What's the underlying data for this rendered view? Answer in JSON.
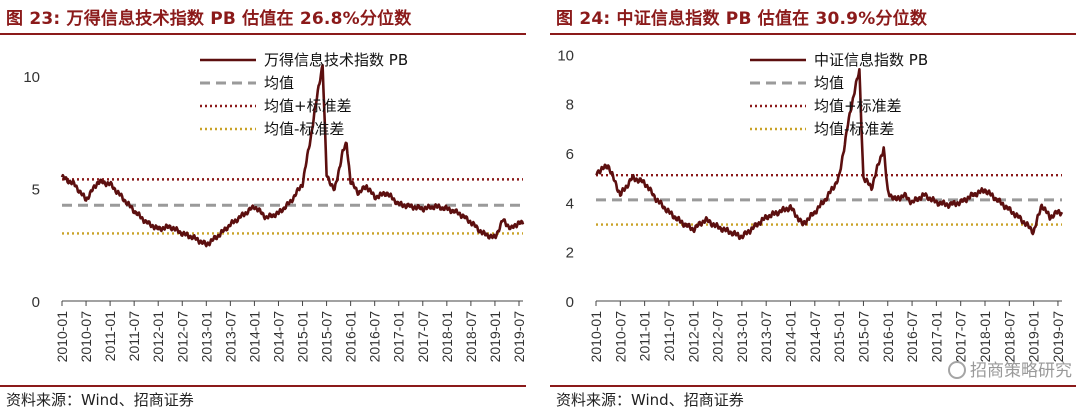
{
  "figures": [
    {
      "title": "图 23:  万得信息技术指数 PB 估值在 26.8%分位数",
      "source": "资料来源：Wind、招商证券"
    },
    {
      "title": "图 24:  中证信息指数 PB 估值在 30.9%分位数",
      "source": "资料来源：Wind、招商证券",
      "watermark": "招商策略研究"
    }
  ],
  "colors": {
    "title": "#8b1a1a",
    "series": "#5c0f0f",
    "mean": "#9a9a9a",
    "upper": "#8b1a1a",
    "lower": "#c9a227",
    "axis": "#333333"
  },
  "chart_data": [
    {
      "type": "line",
      "x_ticks": [
        "2010-01",
        "2010-07",
        "2011-01",
        "2011-07",
        "2012-01",
        "2012-07",
        "2013-01",
        "2013-07",
        "2014-01",
        "2014-07",
        "2015-01",
        "2015-07",
        "2016-01",
        "2016-07",
        "2017-01",
        "2017-07",
        "2018-01",
        "2018-07",
        "2019-01",
        "2019-07"
      ],
      "y_ticks": [
        0,
        5,
        10
      ],
      "ylim": [
        0,
        11.5
      ],
      "legend_position": "top-center",
      "series": [
        {
          "name": "万得信息技术指数 PB",
          "style": "solid",
          "color": "#5c0f0f",
          "x": [
            "2010-01",
            "2010-04",
            "2010-07",
            "2010-10",
            "2011-01",
            "2011-04",
            "2011-07",
            "2011-10",
            "2012-01",
            "2012-04",
            "2012-07",
            "2012-10",
            "2013-01",
            "2013-04",
            "2013-07",
            "2013-10",
            "2014-01",
            "2014-04",
            "2014-07",
            "2014-10",
            "2015-01",
            "2015-03",
            "2015-05",
            "2015-06",
            "2015-07",
            "2015-09",
            "2015-11",
            "2015-12",
            "2016-01",
            "2016-03",
            "2016-05",
            "2016-07",
            "2016-10",
            "2017-01",
            "2017-04",
            "2017-07",
            "2017-10",
            "2018-01",
            "2018-04",
            "2018-07",
            "2018-10",
            "2019-01",
            "2019-03",
            "2019-05",
            "2019-07",
            "2019-08"
          ],
          "values": [
            5.5,
            5.2,
            4.5,
            5.3,
            5.2,
            4.6,
            4.0,
            3.5,
            3.2,
            3.3,
            3.0,
            2.8,
            2.5,
            2.9,
            3.4,
            3.8,
            4.2,
            3.7,
            3.9,
            4.4,
            5.2,
            7.2,
            9.5,
            10.5,
            5.6,
            4.9,
            6.6,
            7.0,
            5.3,
            4.8,
            5.1,
            4.6,
            4.8,
            4.3,
            4.2,
            4.1,
            4.2,
            4.1,
            3.9,
            3.5,
            3.0,
            2.8,
            3.6,
            3.2,
            3.5,
            3.4
          ]
        },
        {
          "name": "均值",
          "style": "dashed",
          "color": "#9a9a9a",
          "value": 4.25
        },
        {
          "name": "均值+标准差",
          "style": "dotted",
          "color": "#8b1a1a",
          "value": 5.4
        },
        {
          "name": "均值-标准差",
          "style": "dotted",
          "color": "#c9a227",
          "value": 3.0
        }
      ]
    },
    {
      "type": "line",
      "x_ticks": [
        "2010-01",
        "2010-07",
        "2011-01",
        "2011-07",
        "2012-01",
        "2012-07",
        "2013-01",
        "2013-07",
        "2014-01",
        "2014-07",
        "2015-01",
        "2015-07",
        "2016-01",
        "2016-07",
        "2017-01",
        "2017-07",
        "2018-01",
        "2018-07",
        "2019-01",
        "2019-07"
      ],
      "y_ticks": [
        0,
        2,
        4,
        6,
        8,
        10
      ],
      "ylim": [
        0,
        10.5
      ],
      "legend_position": "top-center",
      "series": [
        {
          "name": "中证信息指数 PB",
          "style": "solid",
          "color": "#5c0f0f",
          "x": [
            "2010-01",
            "2010-04",
            "2010-07",
            "2010-10",
            "2011-01",
            "2011-04",
            "2011-07",
            "2011-10",
            "2012-01",
            "2012-04",
            "2012-07",
            "2012-10",
            "2013-01",
            "2013-04",
            "2013-07",
            "2013-10",
            "2014-01",
            "2014-04",
            "2014-07",
            "2014-10",
            "2015-01",
            "2015-03",
            "2015-05",
            "2015-06",
            "2015-07",
            "2015-09",
            "2015-11",
            "2015-12",
            "2016-01",
            "2016-03",
            "2016-05",
            "2016-07",
            "2016-10",
            "2017-01",
            "2017-04",
            "2017-07",
            "2017-10",
            "2018-01",
            "2018-04",
            "2018-07",
            "2018-10",
            "2019-01",
            "2019-03",
            "2019-05",
            "2019-07",
            "2019-08"
          ],
          "values": [
            5.2,
            5.5,
            4.3,
            5.0,
            4.8,
            4.1,
            3.6,
            3.2,
            2.9,
            3.3,
            3.0,
            2.8,
            2.6,
            3.0,
            3.4,
            3.6,
            3.8,
            3.1,
            3.6,
            4.2,
            5.0,
            7.0,
            8.7,
            9.3,
            5.0,
            4.6,
            5.7,
            6.2,
            4.4,
            4.1,
            4.3,
            4.0,
            4.3,
            4.0,
            3.9,
            4.0,
            4.3,
            4.5,
            4.1,
            3.7,
            3.3,
            2.8,
            3.9,
            3.4,
            3.6,
            3.6
          ]
        },
        {
          "name": "均值",
          "style": "dashed",
          "color": "#9a9a9a",
          "value": 4.1
        },
        {
          "name": "均值+标准差",
          "style": "dotted",
          "color": "#8b1a1a",
          "value": 5.1
        },
        {
          "name": "均值-标准差",
          "style": "dotted",
          "color": "#c9a227",
          "value": 3.1
        }
      ]
    }
  ]
}
